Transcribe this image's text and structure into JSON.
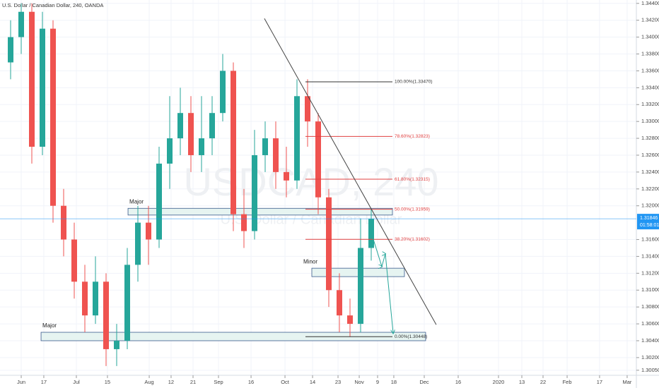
{
  "chart_data": {
    "type": "candlestick",
    "title": "U.S. Dollar / Canadian Dollar, 240, OANDA",
    "watermark": "USDCAD, 240",
    "watermark_subtitle": "U.S. Dollar / Canadian Dollar",
    "up_color": "#26a69a",
    "down_color": "#ef5350",
    "x": [
      1,
      2,
      3,
      4,
      5,
      6,
      7,
      8,
      9,
      10,
      11,
      12,
      13,
      14,
      15,
      16,
      17,
      18,
      19,
      20,
      21,
      22,
      23,
      24,
      25,
      26,
      27,
      28,
      29,
      30,
      31,
      32,
      33,
      34,
      35
    ],
    "open": [
      1.337,
      1.34,
      1.343,
      1.327,
      1.341,
      1.32,
      1.316,
      1.311,
      1.307,
      1.311,
      1.303,
      1.304,
      1.313,
      1.318,
      1.316,
      1.325,
      1.328,
      1.331,
      1.326,
      1.328,
      1.331,
      1.336,
      1.319,
      1.317,
      1.326,
      1.328,
      1.324,
      1.323,
      1.333,
      1.33,
      1.321,
      1.31,
      1.307,
      1.306,
      1.315
    ],
    "high": [
      1.342,
      1.344,
      1.344,
      1.343,
      1.342,
      1.322,
      1.318,
      1.313,
      1.314,
      1.312,
      1.306,
      1.315,
      1.32,
      1.32,
      1.327,
      1.333,
      1.334,
      1.333,
      1.333,
      1.333,
      1.338,
      1.337,
      1.322,
      1.329,
      1.33,
      1.33,
      1.327,
      1.335,
      1.335,
      1.331,
      1.322,
      1.312,
      1.309,
      1.3185,
      1.3196
    ],
    "low": [
      1.335,
      1.338,
      1.325,
      1.326,
      1.318,
      1.314,
      1.309,
      1.305,
      1.306,
      1.301,
      1.301,
      1.303,
      1.311,
      1.313,
      1.315,
      1.322,
      1.326,
      1.324,
      1.324,
      1.326,
      1.33,
      1.317,
      1.315,
      1.316,
      1.324,
      1.322,
      1.321,
      1.322,
      1.327,
      1.319,
      1.308,
      1.305,
      1.3045,
      1.305,
      1.3135
    ],
    "close": [
      1.34,
      1.343,
      1.327,
      1.341,
      1.32,
      1.316,
      1.311,
      1.307,
      1.311,
      1.303,
      1.304,
      1.313,
      1.318,
      1.316,
      1.325,
      1.328,
      1.331,
      1.326,
      1.328,
      1.331,
      1.336,
      1.319,
      1.317,
      1.326,
      1.328,
      1.324,
      1.323,
      1.333,
      1.33,
      1.321,
      1.31,
      1.307,
      1.306,
      1.315,
      1.31846
    ],
    "xlim": [
      0,
      60
    ],
    "ylim": [
      1.2999,
      1.3444
    ],
    "xticks": [
      {
        "value": 2,
        "label": "Jun"
      },
      {
        "value": 4.13,
        "label": "17"
      },
      {
        "value": 7.2,
        "label": "Jul"
      },
      {
        "value": 10.13,
        "label": "15"
      },
      {
        "value": 14.07,
        "label": "Aug"
      },
      {
        "value": 16.13,
        "label": "12"
      },
      {
        "value": 18.2,
        "label": "21"
      },
      {
        "value": 20.6,
        "label": "Sep"
      },
      {
        "value": 23.67,
        "label": "16"
      },
      {
        "value": 26.87,
        "label": "Oct"
      },
      {
        "value": 29.47,
        "label": "14"
      },
      {
        "value": 31.87,
        "label": "23"
      },
      {
        "value": 33.87,
        "label": "Nov"
      },
      {
        "value": 35.6,
        "label": "9"
      },
      {
        "value": 37.13,
        "label": "18"
      },
      {
        "value": 40,
        "label": "Dec"
      },
      {
        "value": 43.2,
        "label": "16"
      },
      {
        "value": 47,
        "label": "2020"
      },
      {
        "value": 49.2,
        "label": "13"
      },
      {
        "value": 51.2,
        "label": "22"
      },
      {
        "value": 53.47,
        "label": "Feb"
      },
      {
        "value": 56.53,
        "label": "17"
      },
      {
        "value": 59.13,
        "label": "Mar"
      }
    ],
    "yticks": [
      {
        "value": 1.3005,
        "label": "1.30050"
      },
      {
        "value": 1.302,
        "label": "1.30200"
      },
      {
        "value": 1.304,
        "label": "1.30400"
      },
      {
        "value": 1.306,
        "label": "1.30600"
      },
      {
        "value": 1.308,
        "label": "1.30800"
      },
      {
        "value": 1.31,
        "label": "1.31000"
      },
      {
        "value": 1.312,
        "label": "1.31200"
      },
      {
        "value": 1.314,
        "label": "1.31400"
      },
      {
        "value": 1.316,
        "label": "1.31600"
      },
      {
        "value": 1.32,
        "label": "1.32000"
      },
      {
        "value": 1.322,
        "label": "1.32200"
      },
      {
        "value": 1.324,
        "label": "1.32400"
      },
      {
        "value": 1.326,
        "label": "1.32600"
      },
      {
        "value": 1.328,
        "label": "1.32800"
      },
      {
        "value": 1.33,
        "label": "1.33000"
      },
      {
        "value": 1.332,
        "label": "1.33200"
      },
      {
        "value": 1.334,
        "label": "1.33400"
      },
      {
        "value": 1.336,
        "label": "1.33600"
      },
      {
        "value": 1.338,
        "label": "1.33800"
      },
      {
        "value": 1.34,
        "label": "1.34000"
      },
      {
        "value": 1.342,
        "label": "1.34200"
      },
      {
        "value": 1.344,
        "label": "1.34400"
      }
    ],
    "grid": true,
    "last_price": 1.31846,
    "last_price_color": "#2196f3",
    "countdown": "01:58:01",
    "fib_x": [
      28.8,
      37
    ],
    "fib_levels": [
      {
        "value": 1.3347,
        "label": "100.00%(1.33470)",
        "color": "#333333"
      },
      {
        "value": 1.32823,
        "label": "78.60%(1.32823)",
        "color": "#e04040"
      },
      {
        "value": 1.32315,
        "label": "61.80%(1.32315)",
        "color": "#e04040"
      },
      {
        "value": 1.31959,
        "label": "50.00%(1.31959)",
        "color": "#e04040"
      },
      {
        "value": 1.31602,
        "label": "38.20%(1.31602)",
        "color": "#e04040"
      },
      {
        "value": 1.30448,
        "label": "0.00%(1.30448)",
        "color": "#333333"
      }
    ],
    "zones": [
      {
        "label": "Major",
        "xlim": [
          12.07,
          37
        ],
        "ylim": [
          1.3189,
          1.3197
        ]
      },
      {
        "label": "Minor",
        "xlim": [
          29.4,
          38.13
        ],
        "ylim": [
          1.3116,
          1.3126
        ]
      },
      {
        "label": "Major",
        "xlim": [
          3.87,
          40.13
        ],
        "ylim": [
          1.304,
          1.305
        ]
      }
    ],
    "zone_color": "#e6f4f1",
    "trendline": {
      "x": [
        24.93,
        41.13
      ],
      "y": [
        1.3422,
        1.3059
      ],
      "color": "#444444"
    },
    "projection": {
      "x": [
        35.13,
        36,
        36.33,
        37.07
      ],
      "y": [
        1.3163,
        1.3128,
        1.3143,
        1.3049
      ],
      "color": "#26a69a"
    }
  }
}
